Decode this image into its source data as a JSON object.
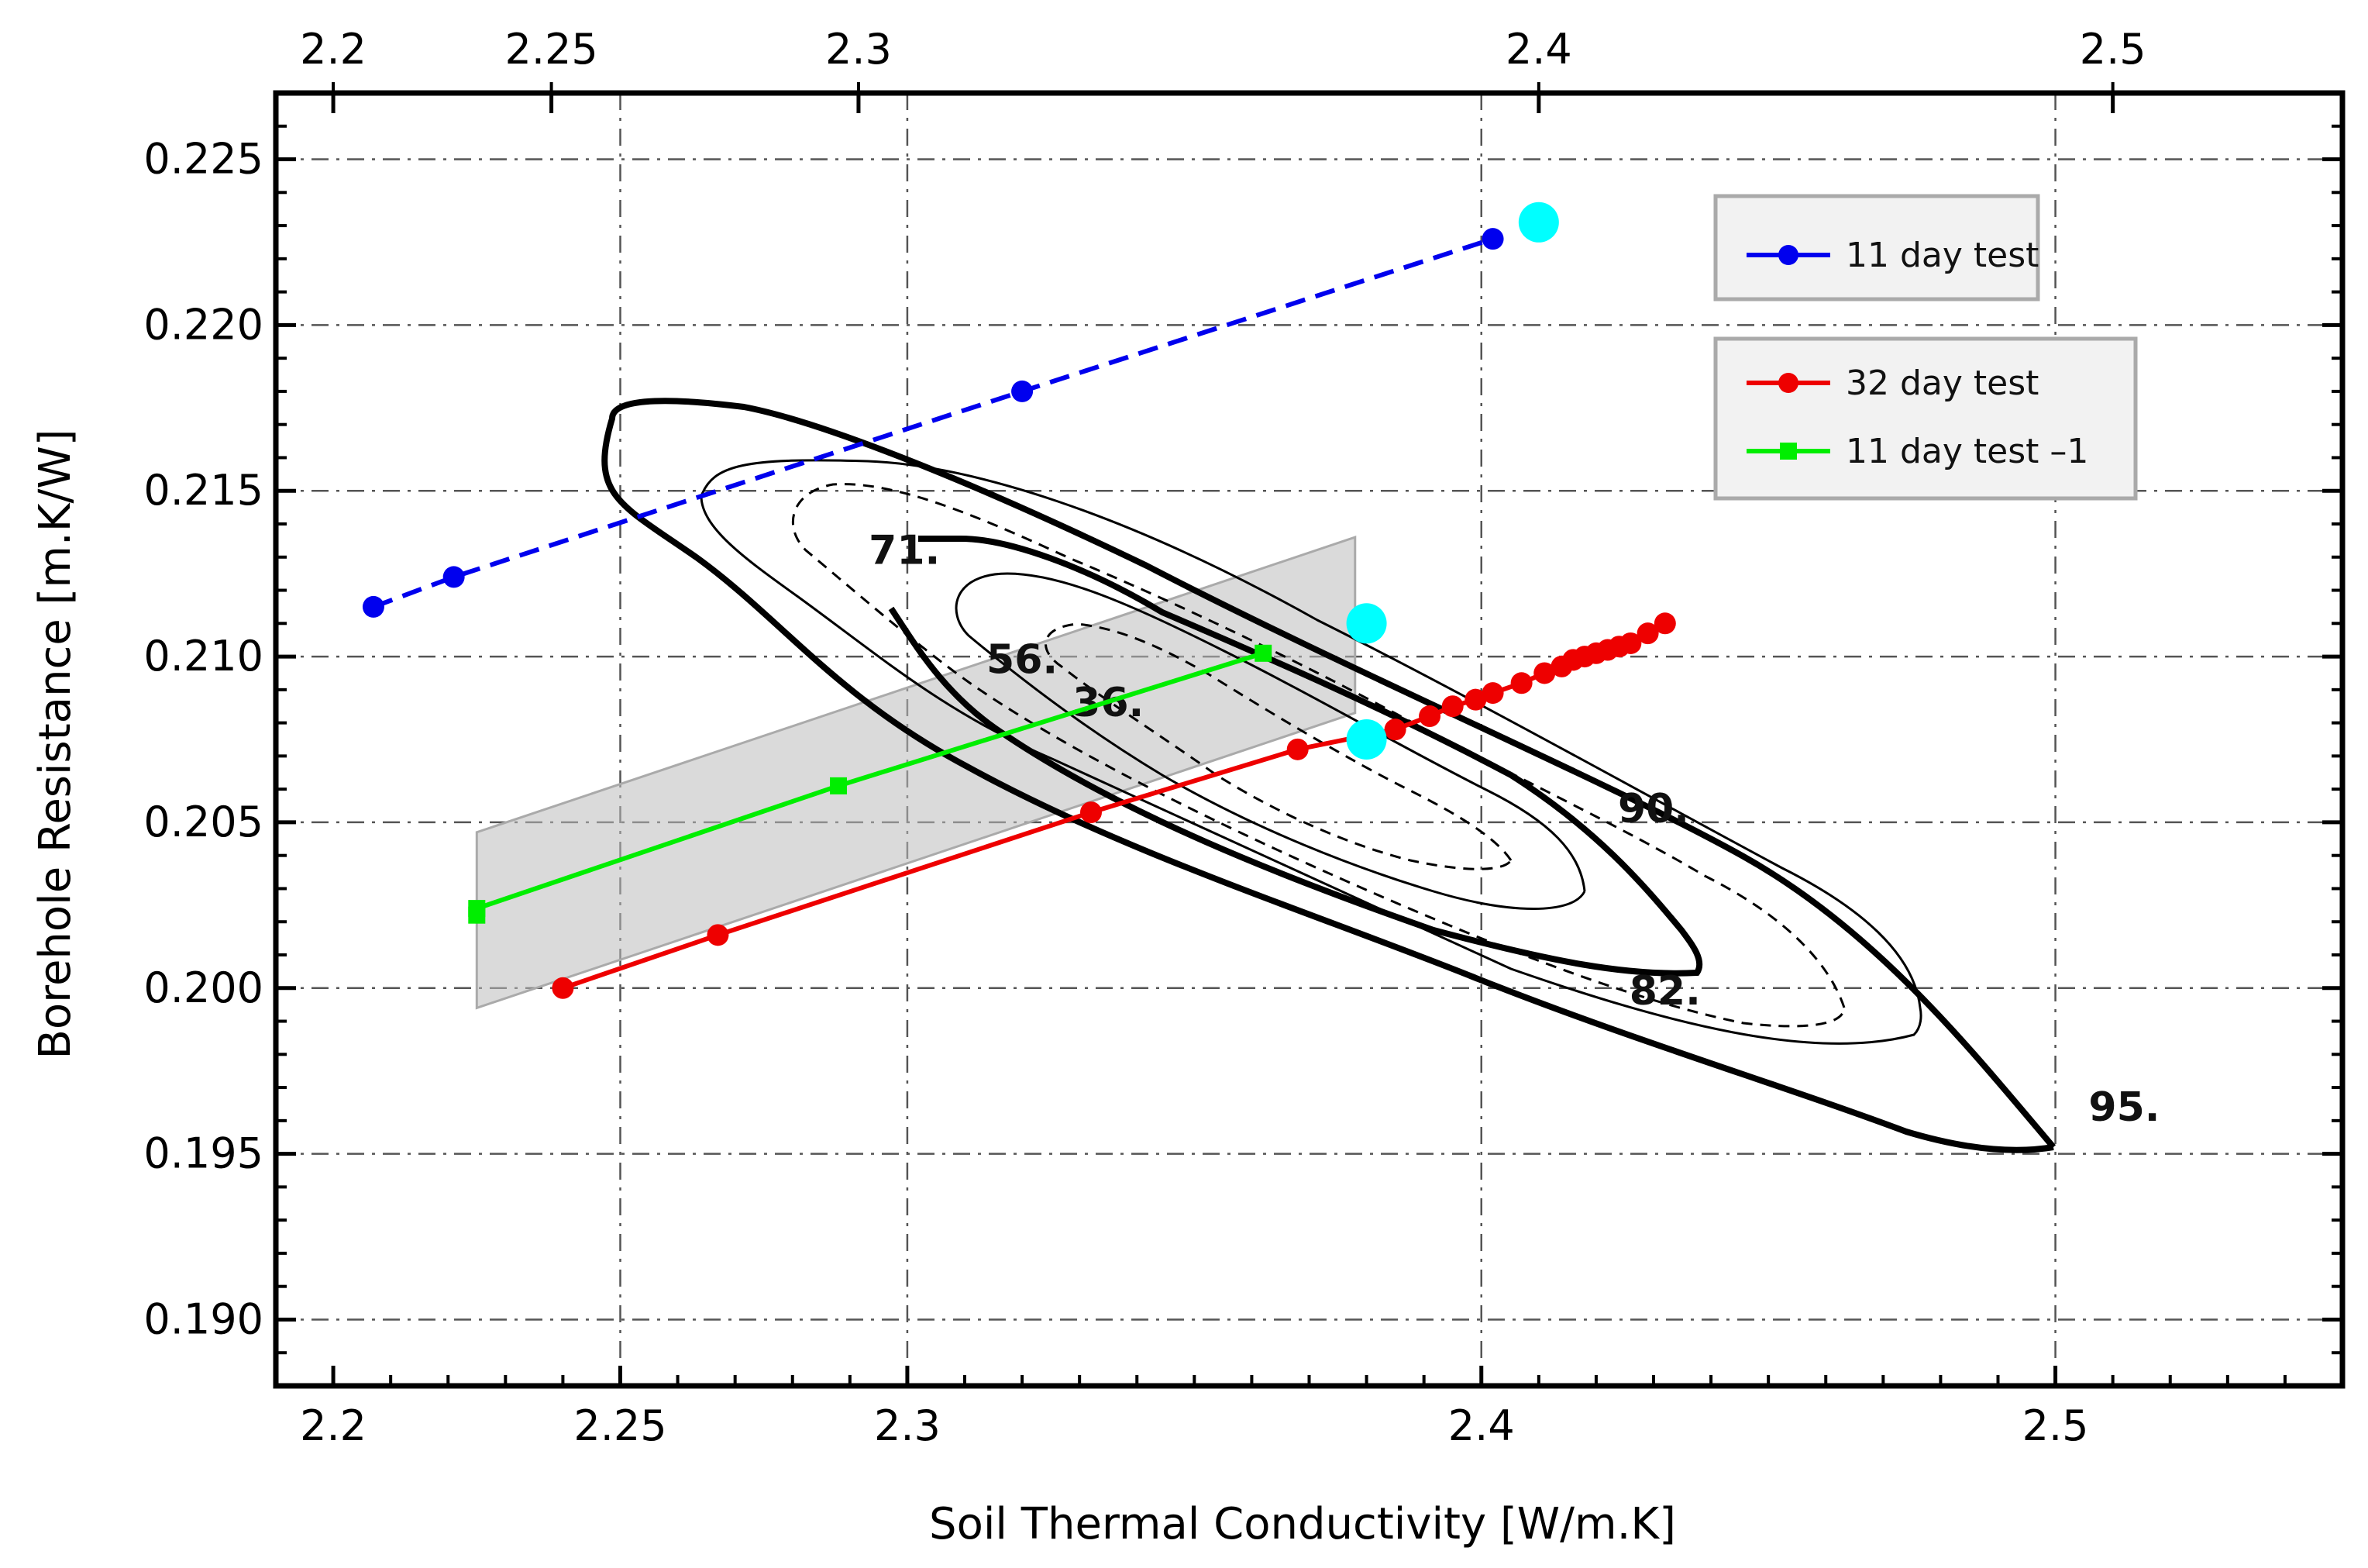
{
  "chart_data": {
    "type": "line",
    "xlabel": "Soil Thermal Conductivity [W/m.K]",
    "ylabel": "Borehole Resistance [m.K/W]",
    "xlim": [
      2.19,
      2.55
    ],
    "ylim": [
      0.188,
      0.227
    ],
    "grid": true,
    "legend_position": "top-right",
    "bottom_axis": {
      "ticks": [
        2.2,
        2.25,
        2.3,
        2.4,
        2.5
      ],
      "tick_labels": [
        "2.2",
        "2.25",
        "2.3",
        "2.4",
        "2.5"
      ]
    },
    "top_axis": {
      "ticks": [
        2.2,
        2.25,
        2.3,
        2.4,
        2.5
      ],
      "tick_labels": [
        "2.2",
        "2.25",
        "2.3",
        "2.4",
        "2.5"
      ],
      "positions_in_bottom_units": [
        2.2,
        2.238,
        2.2915,
        2.41,
        2.51
      ]
    },
    "y_ticks": [
      0.19,
      0.195,
      0.2,
      0.205,
      0.21,
      0.215,
      0.22,
      0.225
    ],
    "y_tick_labels": [
      "0.190",
      "0.195",
      "0.200",
      "0.205",
      "0.210",
      "0.215",
      "0.220",
      "0.225"
    ],
    "series": [
      {
        "name": "11 day test",
        "color": "#0000ee",
        "line_style": "dashed",
        "marker": "circle",
        "x": [
          2.207,
          2.221,
          2.32,
          2.402
        ],
        "y": [
          0.2115,
          0.2124,
          0.218,
          0.2226
        ]
      },
      {
        "name": "32 day test",
        "color": "#ee0000",
        "line_style": "solid",
        "marker": "circle",
        "x": [
          2.24,
          2.267,
          2.332,
          2.368,
          2.385,
          2.391,
          2.395,
          2.399,
          2.402,
          2.407,
          2.411,
          2.414,
          2.416,
          2.418,
          2.42,
          2.422,
          2.424,
          2.426,
          2.429,
          2.432
        ],
        "y": [
          0.2,
          0.2016,
          0.2053,
          0.2072,
          0.2078,
          0.2082,
          0.2085,
          0.2087,
          0.2089,
          0.2092,
          0.2095,
          0.2097,
          0.2099,
          0.21,
          0.2101,
          0.2102,
          0.2103,
          0.2104,
          0.2107,
          0.211
        ]
      },
      {
        "name": "11 day test –1",
        "color": "#00ee00",
        "line_style": "solid",
        "marker": "square",
        "x": [
          2.225,
          2.225,
          2.288,
          2.362
        ],
        "y": [
          0.2022,
          0.2024,
          0.2061,
          0.2101
        ]
      }
    ],
    "highlight_points": {
      "color": "#00ffff",
      "points": [
        {
          "x": 2.41,
          "y": 0.2231
        },
        {
          "x": 2.38,
          "y": 0.211
        },
        {
          "x": 2.38,
          "y": 0.2075
        }
      ]
    },
    "uncertainty_band": {
      "color": "#bbbbbb",
      "x": [
        2.225,
        2.378
      ],
      "upper": [
        0.2047,
        0.2136
      ],
      "lower": [
        0.1994,
        0.2083
      ]
    },
    "contour_labels": [
      "36.",
      "56.",
      "71.",
      "82.",
      "90.",
      "95."
    ],
    "annotations": [
      {
        "text": "71.",
        "x": 2.2995,
        "y": 0.2128
      },
      {
        "text": "56.",
        "x": 2.32,
        "y": 0.2095
      },
      {
        "text": "36.",
        "x": 2.335,
        "y": 0.2082
      },
      {
        "text": "90.",
        "x": 2.43,
        "y": 0.205
      },
      {
        "text": "82.",
        "x": 2.432,
        "y": 0.1995
      },
      {
        "text": "95.",
        "x": 2.512,
        "y": 0.196
      }
    ]
  },
  "legends": [
    {
      "entries": [
        {
          "label": "11 day test",
          "color": "#0000ee",
          "marker": "circle"
        }
      ]
    },
    {
      "entries": [
        {
          "label": "32 day test",
          "color": "#ee0000",
          "marker": "circle"
        },
        {
          "label": "11 day test –1",
          "color": "#00ee00",
          "marker": "square"
        }
      ]
    }
  ]
}
